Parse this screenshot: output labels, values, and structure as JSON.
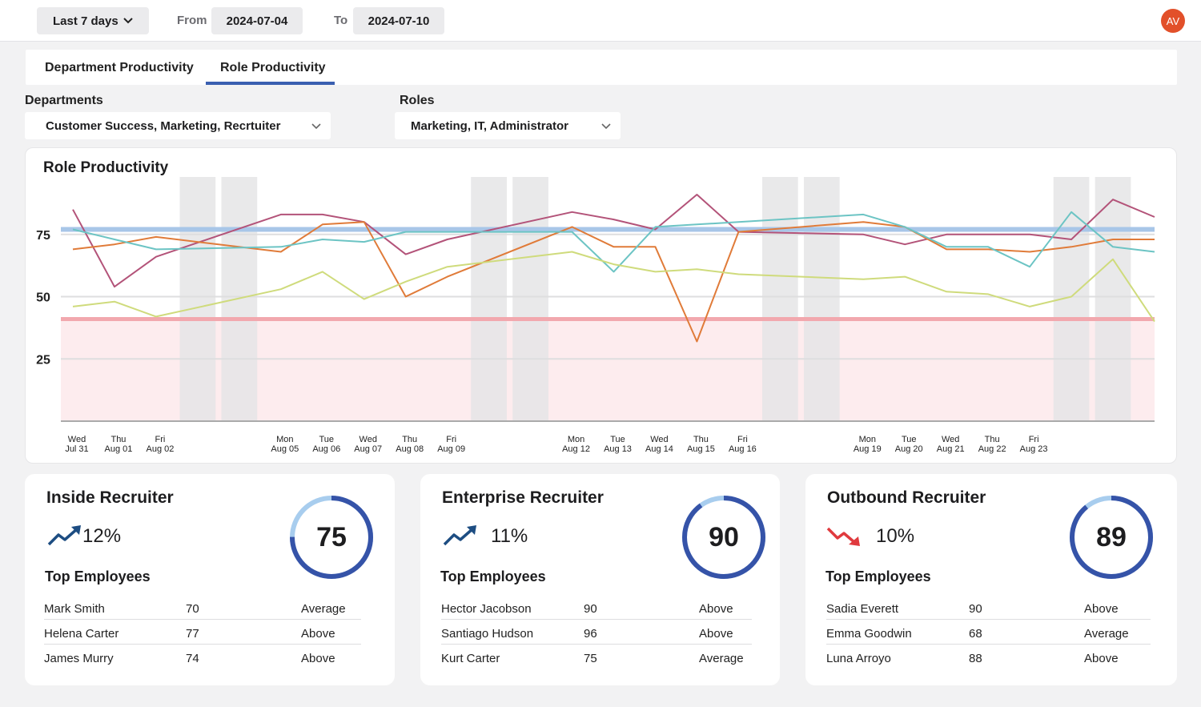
{
  "topbar": {
    "range_label": "Last 7 days",
    "from_label": "From",
    "from_value": "2024-07-04",
    "to_label": "To",
    "to_value": "2024-07-10",
    "avatar_initials": "AV",
    "avatar_color": "#e2502a"
  },
  "tabs": [
    {
      "label": "Department Productivity",
      "active": false
    },
    {
      "label": "Role Productivity",
      "active": true
    }
  ],
  "filters": {
    "departments_label": "Departments",
    "departments_value": "Customer Success, Marketing, Recrtuiter",
    "roles_label": "Roles",
    "roles_value": "Marketing, IT, Administrator"
  },
  "chart_data": {
    "type": "line",
    "title": "Role Productivity",
    "yticks": [
      25,
      50,
      75
    ],
    "ylim": [
      0,
      100
    ],
    "x_ticks": [
      {
        "day": "Wed",
        "date": "Jul 31"
      },
      {
        "day": "Thu",
        "date": "Aug 01"
      },
      {
        "day": "Fri",
        "date": "Aug 02"
      },
      {
        "day": "Mon",
        "date": "Aug 05"
      },
      {
        "day": "Tue",
        "date": "Aug 06"
      },
      {
        "day": "Wed",
        "date": "Aug 07"
      },
      {
        "day": "Thu",
        "date": "Aug 08"
      },
      {
        "day": "Fri",
        "date": "Aug 09"
      },
      {
        "day": "Mon",
        "date": "Aug 12"
      },
      {
        "day": "Tue",
        "date": "Aug 13"
      },
      {
        "day": "Wed",
        "date": "Aug 14"
      },
      {
        "day": "Thu",
        "date": "Aug 15"
      },
      {
        "day": "Fri",
        "date": "Aug 16"
      },
      {
        "day": "Mon",
        "date": "Aug 19"
      },
      {
        "day": "Tue",
        "date": "Aug 20"
      },
      {
        "day": "Wed",
        "date": "Aug 21"
      },
      {
        "day": "Thu",
        "date": "Aug 22"
      },
      {
        "day": "Fri",
        "date": "Aug 23"
      }
    ],
    "x_range": [
      "2024-07-31",
      "2024-08-26"
    ],
    "weekend_bands": [
      "2024-08-03",
      "2024-08-04",
      "2024-08-10",
      "2024-08-11",
      "2024-08-17",
      "2024-08-18",
      "2024-08-24",
      "2024-08-25"
    ],
    "target_line": 77,
    "threshold_line": 41,
    "threshold_zone": [
      0,
      41
    ],
    "colors": {
      "target": "#a8c6e8",
      "threshold": "#f2a8ae",
      "zone": "#fdecee",
      "band": "#e5e5e6",
      "grid": "#dededf",
      "axis": "#aaaaaa"
    },
    "series": [
      {
        "color": "#b35379",
        "points": [
          [
            "2024-07-31",
            85
          ],
          [
            "2024-08-01",
            54
          ],
          [
            "2024-08-02",
            66
          ],
          [
            "2024-08-05",
            83
          ],
          [
            "2024-08-06",
            83
          ],
          [
            "2024-08-07",
            80
          ],
          [
            "2024-08-08",
            67
          ],
          [
            "2024-08-09",
            73
          ],
          [
            "2024-08-12",
            84
          ],
          [
            "2024-08-13",
            81
          ],
          [
            "2024-08-14",
            77
          ],
          [
            "2024-08-15",
            91
          ],
          [
            "2024-08-16",
            76
          ],
          [
            "2024-08-19",
            75
          ],
          [
            "2024-08-20",
            71
          ],
          [
            "2024-08-21",
            75
          ],
          [
            "2024-08-22",
            75
          ],
          [
            "2024-08-23",
            75
          ],
          [
            "2024-08-24",
            73
          ],
          [
            "2024-08-25",
            89
          ],
          [
            "2024-08-26",
            82
          ]
        ]
      },
      {
        "color": "#e07b39",
        "points": [
          [
            "2024-07-31",
            69
          ],
          [
            "2024-08-01",
            71
          ],
          [
            "2024-08-02",
            74
          ],
          [
            "2024-08-05",
            68
          ],
          [
            "2024-08-06",
            79
          ],
          [
            "2024-08-07",
            80
          ],
          [
            "2024-08-08",
            50
          ],
          [
            "2024-08-09",
            58
          ],
          [
            "2024-08-12",
            78
          ],
          [
            "2024-08-13",
            70
          ],
          [
            "2024-08-14",
            70
          ],
          [
            "2024-08-15",
            32
          ],
          [
            "2024-08-16",
            76
          ],
          [
            "2024-08-19",
            80
          ],
          [
            "2024-08-20",
            78
          ],
          [
            "2024-08-21",
            69
          ],
          [
            "2024-08-22",
            69
          ],
          [
            "2024-08-23",
            68
          ],
          [
            "2024-08-24",
            70
          ],
          [
            "2024-08-25",
            73
          ],
          [
            "2024-08-26",
            73
          ]
        ]
      },
      {
        "color": "#6cc4c4",
        "points": [
          [
            "2024-07-31",
            77
          ],
          [
            "2024-08-01",
            73
          ],
          [
            "2024-08-02",
            69
          ],
          [
            "2024-08-05",
            70
          ],
          [
            "2024-08-06",
            73
          ],
          [
            "2024-08-07",
            72
          ],
          [
            "2024-08-08",
            76
          ],
          [
            "2024-08-09",
            76
          ],
          [
            "2024-08-12",
            76
          ],
          [
            "2024-08-13",
            60
          ],
          [
            "2024-08-14",
            78
          ],
          [
            "2024-08-15",
            79
          ],
          [
            "2024-08-16",
            80
          ],
          [
            "2024-08-19",
            83
          ],
          [
            "2024-08-20",
            78
          ],
          [
            "2024-08-21",
            70
          ],
          [
            "2024-08-22",
            70
          ],
          [
            "2024-08-23",
            62
          ],
          [
            "2024-08-24",
            84
          ],
          [
            "2024-08-25",
            70
          ],
          [
            "2024-08-26",
            68
          ]
        ]
      },
      {
        "color": "#cfdb7c",
        "points": [
          [
            "2024-07-31",
            46
          ],
          [
            "2024-08-01",
            48
          ],
          [
            "2024-08-02",
            42
          ],
          [
            "2024-08-05",
            53
          ],
          [
            "2024-08-06",
            60
          ],
          [
            "2024-08-07",
            49
          ],
          [
            "2024-08-08",
            56
          ],
          [
            "2024-08-09",
            62
          ],
          [
            "2024-08-12",
            68
          ],
          [
            "2024-08-13",
            63
          ],
          [
            "2024-08-14",
            60
          ],
          [
            "2024-08-15",
            61
          ],
          [
            "2024-08-16",
            59
          ],
          [
            "2024-08-19",
            57
          ],
          [
            "2024-08-20",
            58
          ],
          [
            "2024-08-21",
            52
          ],
          [
            "2024-08-22",
            51
          ],
          [
            "2024-08-23",
            46
          ],
          [
            "2024-08-24",
            50
          ],
          [
            "2024-08-25",
            65
          ],
          [
            "2024-08-26",
            40
          ]
        ]
      }
    ]
  },
  "cards": [
    {
      "title": "Inside Recruiter",
      "trend": "up",
      "trend_icon": "trend-up-icon",
      "trend_color": "#1d4d82",
      "change": "12%",
      "score": "75",
      "score_fraction": 0.75,
      "top_label": "Top Employees",
      "employees": [
        {
          "name": "Mark Smith",
          "score": "70",
          "rating": "Average"
        },
        {
          "name": "Helena Carter",
          "score": "77",
          "rating": "Above"
        },
        {
          "name": "James Murry",
          "score": "74",
          "rating": "Above"
        }
      ]
    },
    {
      "title": "Enterprise Recruiter",
      "trend": "up",
      "trend_icon": "trend-up-icon",
      "trend_color": "#1d4d82",
      "change": "11%",
      "score": "90",
      "score_fraction": 0.9,
      "top_label": "Top Employees",
      "employees": [
        {
          "name": "Hector Jacobson",
          "score": "90",
          "rating": "Above"
        },
        {
          "name": "Santiago Hudson",
          "score": "96",
          "rating": "Above"
        },
        {
          "name": "Kurt Carter",
          "score": "75",
          "rating": "Average"
        }
      ]
    },
    {
      "title": "Outbound Recruiter",
      "trend": "down",
      "trend_icon": "trend-down-icon",
      "trend_color": "#e03a3e",
      "change": "10%",
      "score": "89",
      "score_fraction": 0.89,
      "top_label": "Top Employees",
      "employees": [
        {
          "name": "Sadia Everett",
          "score": "90",
          "rating": "Above"
        },
        {
          "name": "Emma Goodwin",
          "score": "68",
          "rating": "Average"
        },
        {
          "name": "Luna Arroyo",
          "score": "88",
          "rating": "Above"
        }
      ]
    }
  ]
}
